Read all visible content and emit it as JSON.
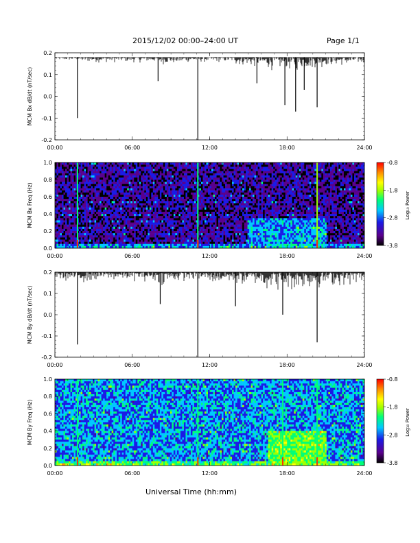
{
  "header": {
    "title": "2015/12/02  00:00–24:00 UT",
    "page": "Page 1/1"
  },
  "x_axis_title": "Universal Time (hh:mm)",
  "colors": {
    "trace": "#000000",
    "frame": "#000000",
    "colormap": [
      "#000000",
      "#5a008c",
      "#1a1ae6",
      "#00c8ff",
      "#00ff78",
      "#a0ff00",
      "#ffff00",
      "#ff8c00",
      "#ff0000"
    ]
  },
  "chart_data": [
    {
      "type": "line",
      "ylabel": "MCM Bx dB/dt (nT/sec)",
      "xlim": [
        "00:00",
        "24:00"
      ],
      "ylim": [
        -0.2,
        0.2
      ],
      "x_ticks": [
        "00:00",
        "06:00",
        "12:00",
        "18:00",
        "24:00"
      ],
      "y_ticks": [
        "0.2",
        "0.1",
        "0.0",
        "-0.1",
        "-0.2"
      ],
      "baseline": 0.18,
      "noise_floor_by_hour": [
        0.16,
        0.16,
        0.15,
        0.15,
        0.15,
        0.15,
        0.15,
        0.15,
        0.14,
        0.14,
        0.15,
        0.15,
        0.15,
        0.15,
        0.13,
        0.12,
        0.11,
        0.1,
        0.1,
        0.11,
        0.12,
        0.13,
        0.13,
        0.14
      ],
      "spikes": [
        {
          "t": "01:45",
          "y": -0.1
        },
        {
          "t": "08:00",
          "y": 0.07
        },
        {
          "t": "11:05",
          "y": -0.2
        },
        {
          "t": "15:40",
          "y": 0.06
        },
        {
          "t": "17:50",
          "y": -0.04
        },
        {
          "t": "18:40",
          "y": -0.07
        },
        {
          "t": "19:20",
          "y": 0.03
        },
        {
          "t": "20:20",
          "y": -0.05
        }
      ]
    },
    {
      "type": "heatmap",
      "ylabel": "MCM Bx Freq (Hz)",
      "xlim": [
        "00:00",
        "24:00"
      ],
      "ylim": [
        0.0,
        1.0
      ],
      "x_ticks": [
        "00:00",
        "06:00",
        "12:00",
        "18:00",
        "24:00"
      ],
      "y_ticks": [
        "1.0",
        "0.8",
        "0.6",
        "0.4",
        "0.2",
        "0.0"
      ],
      "colorbar": {
        "label": "Log₁₀ Power",
        "ticks": [
          "-0.8",
          "-1.8",
          "-2.8",
          "-3.8"
        ],
        "range": [
          -3.8,
          -0.8
        ]
      },
      "background_power": -3.4,
      "broadband_events": [
        {
          "t": "01:45",
          "power": -2.2
        },
        {
          "t": "11:05",
          "power": -2.2
        },
        {
          "t": "20:20",
          "power": -2.1
        }
      ],
      "enhanced_region": {
        "t_start": "15:00",
        "t_end": "21:00",
        "f_max": 0.35,
        "power": -2.8
      }
    },
    {
      "type": "line",
      "ylabel": "MCM By dB/dt (nT/sec)",
      "xlim": [
        "00:00",
        "24:00"
      ],
      "ylim": [
        -0.2,
        0.2
      ],
      "x_ticks": [
        "00:00",
        "06:00",
        "12:00",
        "18:00",
        "24:00"
      ],
      "y_ticks": [
        "0.2",
        "0.1",
        "0.0",
        "-0.1",
        "-0.2"
      ],
      "baseline": 0.2,
      "noise_floor_by_hour": [
        0.15,
        0.14,
        0.14,
        0.15,
        0.15,
        0.15,
        0.15,
        0.14,
        0.13,
        0.14,
        0.15,
        0.14,
        0.13,
        0.13,
        0.12,
        0.12,
        0.1,
        0.09,
        0.09,
        0.1,
        0.11,
        0.12,
        0.12,
        0.13
      ],
      "spikes": [
        {
          "t": "01:45",
          "y": -0.14
        },
        {
          "t": "11:05",
          "y": -0.2
        },
        {
          "t": "08:10",
          "y": 0.05
        },
        {
          "t": "14:00",
          "y": 0.04
        },
        {
          "t": "17:40",
          "y": 0.0
        },
        {
          "t": "20:20",
          "y": -0.13
        }
      ]
    },
    {
      "type": "heatmap",
      "ylabel": "MCM By Freq (Hz)",
      "xlim": [
        "00:00",
        "24:00"
      ],
      "ylim": [
        0.0,
        1.0
      ],
      "x_ticks": [
        "00:00",
        "06:00",
        "12:00",
        "18:00",
        "24:00"
      ],
      "y_ticks": [
        "1.0",
        "0.8",
        "0.6",
        "0.4",
        "0.2",
        "0.0"
      ],
      "colorbar": {
        "label": "Log₁₀ Power",
        "ticks": [
          "-0.8",
          "-1.8",
          "-2.8",
          "-3.8"
        ],
        "range": [
          -3.8,
          -0.8
        ]
      },
      "background_power": -2.8,
      "broadband_events": [
        {
          "t": "01:45",
          "power": -2.3
        },
        {
          "t": "11:05",
          "power": -2.3
        },
        {
          "t": "17:40",
          "power": -2.3
        },
        {
          "t": "20:20",
          "power": -2.2
        }
      ],
      "enhanced_region": {
        "t_start": "16:30",
        "t_end": "21:00",
        "f_max": 0.4,
        "power": -2.1
      }
    }
  ]
}
